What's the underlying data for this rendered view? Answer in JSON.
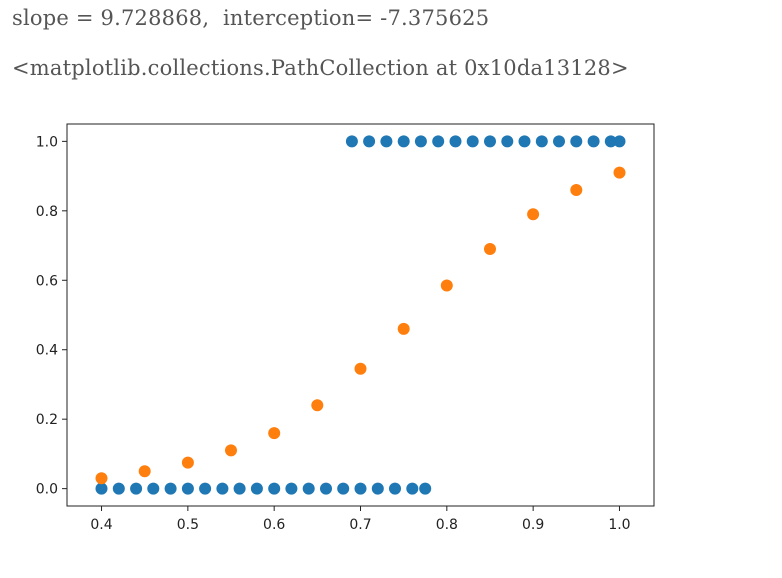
{
  "output": {
    "line1": "slope = 9.728868,  interception= -7.375625",
    "line2": "<matplotlib.collections.PathCollection at 0x10da13128>"
  },
  "colors": {
    "series_blue": "#1f77b4",
    "series_orange": "#ff7f0e",
    "axes": "#222222"
  },
  "chart_data": {
    "type": "scatter",
    "title": "",
    "xlabel": "",
    "ylabel": "",
    "xlim": [
      0.36,
      1.04
    ],
    "ylim": [
      -0.05,
      1.05
    ],
    "xticks": [
      "0.4",
      "0.5",
      "0.6",
      "0.7",
      "0.8",
      "0.9",
      "1.0"
    ],
    "yticks": [
      "0.0",
      "0.2",
      "0.4",
      "0.6",
      "0.8",
      "1.0"
    ],
    "grid": false,
    "series": [
      {
        "color": "#1f77b4",
        "points": [
          [
            0.4,
            0
          ],
          [
            0.42,
            0
          ],
          [
            0.44,
            0
          ],
          [
            0.46,
            0
          ],
          [
            0.48,
            0
          ],
          [
            0.5,
            0
          ],
          [
            0.52,
            0
          ],
          [
            0.54,
            0
          ],
          [
            0.56,
            0
          ],
          [
            0.58,
            0
          ],
          [
            0.6,
            0
          ],
          [
            0.62,
            0
          ],
          [
            0.64,
            0
          ],
          [
            0.66,
            0
          ],
          [
            0.68,
            0
          ],
          [
            0.7,
            0
          ],
          [
            0.72,
            0
          ],
          [
            0.74,
            0
          ],
          [
            0.76,
            0
          ],
          [
            0.775,
            0
          ],
          [
            0.69,
            1
          ],
          [
            0.71,
            1
          ],
          [
            0.73,
            1
          ],
          [
            0.75,
            1
          ],
          [
            0.77,
            1
          ],
          [
            0.79,
            1
          ],
          [
            0.81,
            1
          ],
          [
            0.83,
            1
          ],
          [
            0.85,
            1
          ],
          [
            0.87,
            1
          ],
          [
            0.89,
            1
          ],
          [
            0.91,
            1
          ],
          [
            0.93,
            1
          ],
          [
            0.95,
            1
          ],
          [
            0.97,
            1
          ],
          [
            0.99,
            1
          ],
          [
            1.0,
            1
          ]
        ]
      },
      {
        "color": "#ff7f0e",
        "points": [
          [
            0.4,
            0.03
          ],
          [
            0.45,
            0.05
          ],
          [
            0.5,
            0.075
          ],
          [
            0.55,
            0.11
          ],
          [
            0.6,
            0.16
          ],
          [
            0.65,
            0.24
          ],
          [
            0.7,
            0.345
          ],
          [
            0.75,
            0.46
          ],
          [
            0.8,
            0.585
          ],
          [
            0.85,
            0.69
          ],
          [
            0.9,
            0.79
          ],
          [
            0.95,
            0.86
          ],
          [
            1.0,
            0.91
          ]
        ]
      }
    ]
  }
}
